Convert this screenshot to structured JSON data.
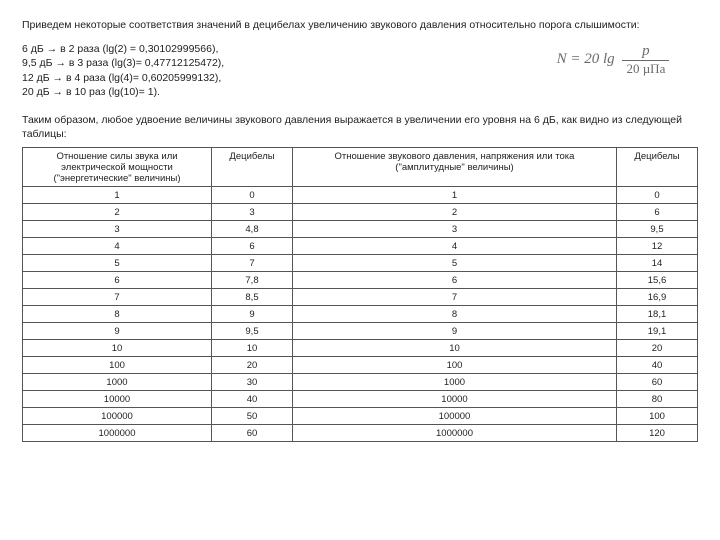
{
  "intro": "Приведем некоторые соответствия значений в децибелах увеличению звукового давления относительно порога слышимости:",
  "conv_lines": [
    "6 дБ → в 2 раза (lg(2) = 0,30102999566),",
    "9,5 дБ → в 3 раза (lg(3)= 0,47712125472),",
    "12 дБ → в 4 раза (lg(4)= 0,60205999132),",
    "20 дБ → в 10 раз (lg(10)= 1)."
  ],
  "formula": {
    "lhs": "N = 20 lg",
    "num": "p",
    "den": "20 µПа"
  },
  "para2": "Таким образом, любое удвоение величины звукового давления выражается в увеличении его уровня на 6 дБ, как видно из следующей таблицы:",
  "table": {
    "columns": [
      "Отношение силы звука или электрической мощности (\"энергетические\" величины)",
      "Децибелы",
      "Отношение звукового давления, напряжения или тока (\"амплитудные\" величины)",
      "Децибелы"
    ],
    "col_widths": [
      "28%",
      "12%",
      "48%",
      "12%"
    ],
    "rows": [
      [
        "1",
        "0",
        "1",
        "0"
      ],
      [
        "2",
        "3",
        "2",
        "6"
      ],
      [
        "3",
        "4,8",
        "3",
        "9,5"
      ],
      [
        "4",
        "6",
        "4",
        "12"
      ],
      [
        "5",
        "7",
        "5",
        "14"
      ],
      [
        "6",
        "7,8",
        "6",
        "15,6"
      ],
      [
        "7",
        "8,5",
        "7",
        "16,9"
      ],
      [
        "8",
        "9",
        "8",
        "18,1"
      ],
      [
        "9",
        "9,5",
        "9",
        "19,1"
      ],
      [
        "10",
        "10",
        "10",
        "20"
      ],
      [
        "100",
        "20",
        "100",
        "40"
      ],
      [
        "1000",
        "30",
        "1000",
        "60"
      ],
      [
        "10000",
        "40",
        "10000",
        "80"
      ],
      [
        "100000",
        "50",
        "100000",
        "100"
      ],
      [
        "1000000",
        "60",
        "1000000",
        "120"
      ]
    ]
  }
}
